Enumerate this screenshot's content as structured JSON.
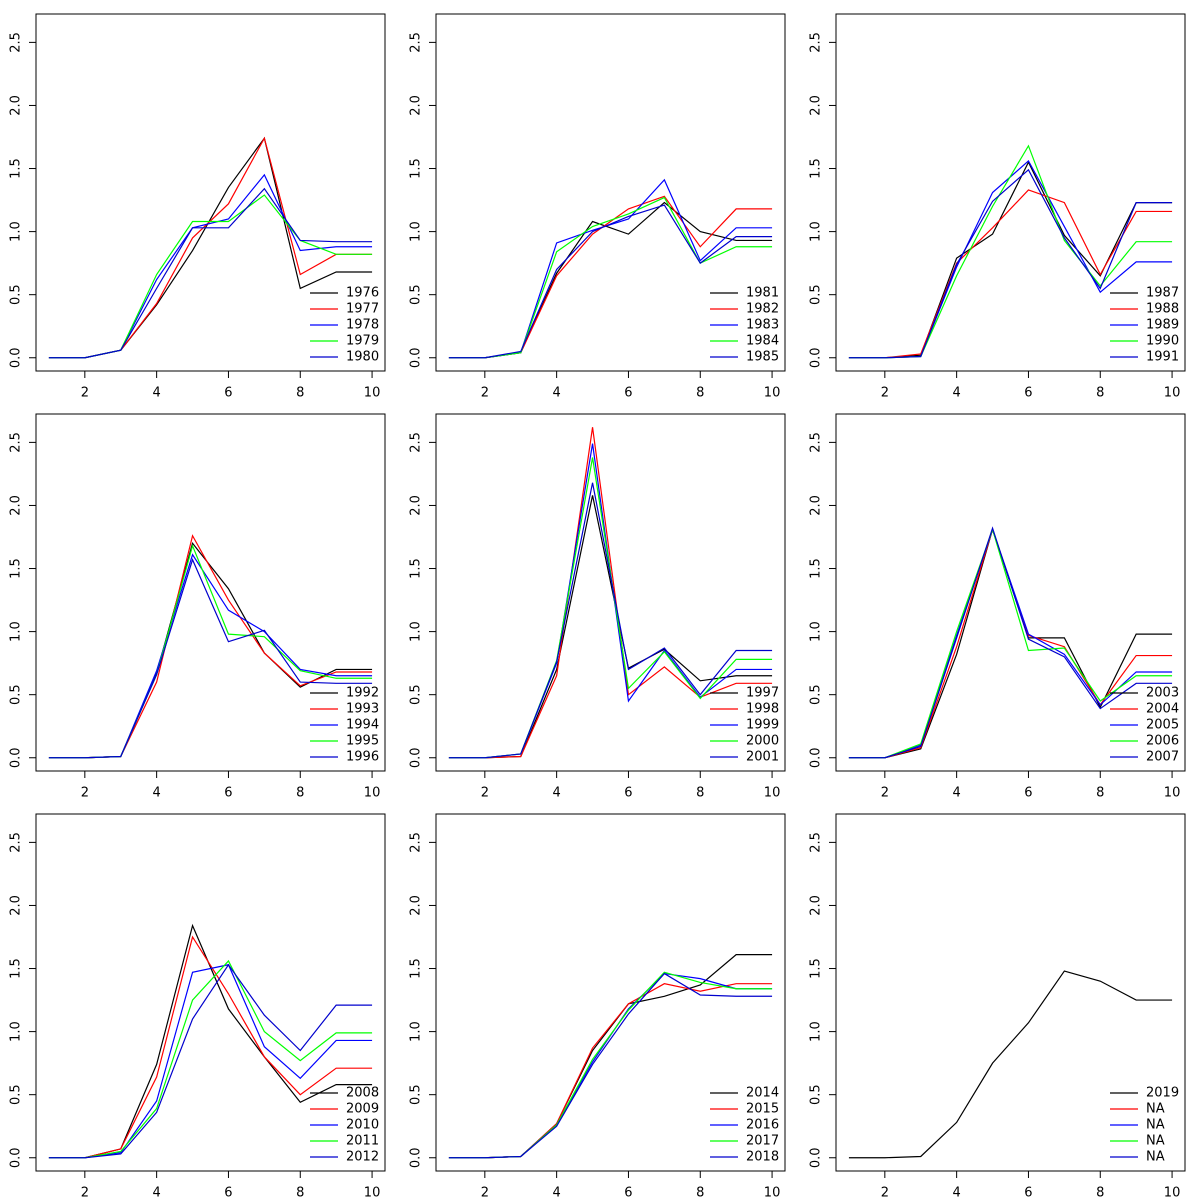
{
  "chart_data": [
    {
      "type": "line",
      "legend": "bottomright",
      "x": [
        1,
        2,
        3,
        4,
        5,
        6,
        7,
        8,
        9,
        10
      ],
      "xlim": [
        0.64,
        10.36
      ],
      "ylim": [
        -0.105,
        2.725
      ],
      "xticks": [
        2,
        4,
        6,
        8,
        10
      ],
      "yticks": [
        {
          "value": 0,
          "label": "0.0"
        },
        0.5,
        {
          "value": 1,
          "label": "1.0"
        },
        1.5,
        {
          "value": 2,
          "label": "2.0"
        },
        2.5
      ],
      "series": [
        {
          "name": "1976",
          "color": "#000000",
          "values": [
            0,
            0,
            0.06,
            0.42,
            0.85,
            1.35,
            1.74,
            0.55,
            0.68,
            0.68
          ]
        },
        {
          "name": "1977",
          "color": "#ff0000",
          "values": [
            0,
            0,
            0.06,
            0.43,
            0.95,
            1.22,
            1.74,
            0.66,
            0.82,
            0.82
          ]
        },
        {
          "name": "1978",
          "color": "#0000ff",
          "values": [
            0,
            0,
            0.06,
            0.62,
            1.03,
            1.1,
            1.45,
            0.85,
            0.88,
            0.88
          ]
        },
        {
          "name": "1979",
          "color": "#00ff00",
          "values": [
            0,
            0,
            0.06,
            0.66,
            1.08,
            1.08,
            1.29,
            0.93,
            0.82,
            0.82
          ]
        },
        {
          "name": "1980",
          "color": "#0000cd",
          "values": [
            0,
            0,
            0.06,
            0.55,
            1.03,
            1.03,
            1.34,
            0.93,
            0.92,
            0.92
          ]
        }
      ]
    },
    {
      "type": "line",
      "legend": "bottomright",
      "x": [
        1,
        2,
        3,
        4,
        5,
        6,
        7,
        8,
        9,
        10
      ],
      "xlim": [
        0.64,
        10.36
      ],
      "ylim": [
        -0.105,
        2.725
      ],
      "xticks": [
        2,
        4,
        6,
        8,
        10
      ],
      "yticks": [
        {
          "value": 0,
          "label": "0.0"
        },
        0.5,
        {
          "value": 1,
          "label": "1.0"
        },
        1.5,
        {
          "value": 2,
          "label": "2.0"
        },
        2.5
      ],
      "series": [
        {
          "name": "1981",
          "color": "#000000",
          "values": [
            0,
            0,
            0.04,
            0.67,
            1.08,
            0.98,
            1.23,
            1.0,
            0.93,
            0.93
          ]
        },
        {
          "name": "1982",
          "color": "#ff0000",
          "values": [
            0,
            0,
            0.04,
            0.65,
            0.98,
            1.18,
            1.28,
            0.88,
            1.18,
            1.18
          ]
        },
        {
          "name": "1983",
          "color": "#0000ff",
          "values": [
            0,
            0,
            0.04,
            0.91,
            1.01,
            1.1,
            1.41,
            0.77,
            1.03,
            1.03
          ]
        },
        {
          "name": "1984",
          "color": "#00ff00",
          "values": [
            0,
            0,
            0.04,
            0.84,
            1.04,
            1.14,
            1.27,
            0.75,
            0.88,
            0.88
          ]
        },
        {
          "name": "1985",
          "color": "#0000cd",
          "values": [
            0,
            0,
            0.05,
            0.7,
            1.0,
            1.12,
            1.21,
            0.75,
            0.96,
            0.96
          ]
        }
      ]
    },
    {
      "type": "line",
      "legend": "bottomright",
      "x": [
        1,
        2,
        3,
        4,
        5,
        6,
        7,
        8,
        9,
        10
      ],
      "xlim": [
        0.64,
        10.36
      ],
      "ylim": [
        -0.105,
        2.725
      ],
      "xticks": [
        2,
        4,
        6,
        8,
        10
      ],
      "yticks": [
        {
          "value": 0,
          "label": "0.0"
        },
        0.5,
        {
          "value": 1,
          "label": "1.0"
        },
        1.5,
        {
          "value": 2,
          "label": "2.0"
        },
        2.5
      ],
      "series": [
        {
          "name": "1987",
          "color": "#000000",
          "values": [
            0,
            0,
            0.02,
            0.79,
            0.98,
            1.55,
            0.97,
            0.65,
            1.23,
            1.23
          ]
        },
        {
          "name": "1988",
          "color": "#ff0000",
          "values": [
            0,
            0,
            0.03,
            0.75,
            1.03,
            1.33,
            1.23,
            0.66,
            1.16,
            1.16
          ]
        },
        {
          "name": "1989",
          "color": "#0000ff",
          "values": [
            0,
            0,
            0.01,
            0.72,
            1.31,
            1.56,
            1.04,
            0.52,
            0.76,
            0.76
          ]
        },
        {
          "name": "1990",
          "color": "#00ff00",
          "values": [
            0,
            0,
            0.01,
            0.65,
            1.2,
            1.68,
            0.93,
            0.57,
            0.92,
            0.92
          ]
        },
        {
          "name": "1991",
          "color": "#0000cd",
          "values": [
            0,
            0,
            0.01,
            0.74,
            1.24,
            1.49,
            0.95,
            0.55,
            1.23,
            1.23
          ]
        }
      ]
    },
    {
      "type": "line",
      "legend": "bottomright",
      "x": [
        1,
        2,
        3,
        4,
        5,
        6,
        7,
        8,
        9,
        10
      ],
      "xlim": [
        0.64,
        10.36
      ],
      "ylim": [
        -0.105,
        2.725
      ],
      "xticks": [
        2,
        4,
        6,
        8,
        10
      ],
      "yticks": [
        {
          "value": 0,
          "label": "0.0"
        },
        0.5,
        {
          "value": 1,
          "label": "1.0"
        },
        1.5,
        {
          "value": 2,
          "label": "2.0"
        },
        2.5
      ],
      "series": [
        {
          "name": "1992",
          "color": "#000000",
          "values": [
            0,
            0,
            0.01,
            0.67,
            1.7,
            1.34,
            0.83,
            0.56,
            0.7,
            0.7
          ]
        },
        {
          "name": "1993",
          "color": "#ff0000",
          "values": [
            0,
            0,
            0.01,
            0.6,
            1.76,
            1.25,
            0.83,
            0.57,
            0.68,
            0.68
          ]
        },
        {
          "name": "1994",
          "color": "#0000ff",
          "values": [
            0,
            0,
            0.01,
            0.69,
            1.61,
            1.17,
            1.0,
            0.7,
            0.65,
            0.65
          ]
        },
        {
          "name": "1995",
          "color": "#00ff00",
          "values": [
            0,
            0,
            0.01,
            0.66,
            1.68,
            0.98,
            0.96,
            0.69,
            0.63,
            0.63
          ]
        },
        {
          "name": "1996",
          "color": "#0000cd",
          "values": [
            0,
            0,
            0.01,
            0.66,
            1.57,
            0.92,
            1.01,
            0.6,
            0.59,
            0.59
          ]
        }
      ]
    },
    {
      "type": "line",
      "legend": "bottomright",
      "x": [
        1,
        2,
        3,
        4,
        5,
        6,
        7,
        8,
        9,
        10
      ],
      "xlim": [
        0.64,
        10.36
      ],
      "ylim": [
        -0.105,
        2.725
      ],
      "xticks": [
        2,
        4,
        6,
        8,
        10
      ],
      "yticks": [
        {
          "value": 0,
          "label": "0.0"
        },
        0.5,
        {
          "value": 1,
          "label": "1.0"
        },
        1.5,
        {
          "value": 2,
          "label": "2.0"
        },
        2.5
      ],
      "series": [
        {
          "name": "1997",
          "color": "#000000",
          "values": [
            0,
            0,
            0.01,
            0.7,
            2.08,
            0.71,
            0.86,
            0.61,
            0.65,
            0.65
          ]
        },
        {
          "name": "1998",
          "color": "#ff0000",
          "values": [
            0,
            0,
            0.01,
            0.65,
            2.62,
            0.5,
            0.72,
            0.48,
            0.59,
            0.59
          ]
        },
        {
          "name": "1999",
          "color": "#0000ff",
          "values": [
            0,
            0,
            0.03,
            0.75,
            2.49,
            0.45,
            0.85,
            0.48,
            0.7,
            0.7
          ]
        },
        {
          "name": "2000",
          "color": "#00ff00",
          "values": [
            0,
            0,
            0.03,
            0.77,
            2.38,
            0.55,
            0.84,
            0.47,
            0.78,
            0.78
          ]
        },
        {
          "name": "2001",
          "color": "#0000cd",
          "values": [
            0,
            0,
            0.03,
            0.76,
            2.18,
            0.7,
            0.87,
            0.5,
            0.85,
            0.85
          ]
        }
      ]
    },
    {
      "type": "line",
      "legend": "bottomright",
      "x": [
        1,
        2,
        3,
        4,
        5,
        6,
        7,
        8,
        9,
        10
      ],
      "xlim": [
        0.64,
        10.36
      ],
      "ylim": [
        -0.105,
        2.725
      ],
      "xticks": [
        2,
        4,
        6,
        8,
        10
      ],
      "yticks": [
        {
          "value": 0,
          "label": "0.0"
        },
        0.5,
        {
          "value": 1,
          "label": "1.0"
        },
        1.5,
        {
          "value": 2,
          "label": "2.0"
        },
        2.5
      ],
      "series": [
        {
          "name": "2003",
          "color": "#000000",
          "values": [
            0,
            0,
            0.07,
            0.82,
            1.81,
            0.95,
            0.95,
            0.4,
            0.98,
            0.98
          ]
        },
        {
          "name": "2004",
          "color": "#ff0000",
          "values": [
            0,
            0,
            0.08,
            0.88,
            1.81,
            0.97,
            0.88,
            0.42,
            0.81,
            0.81
          ]
        },
        {
          "name": "2005",
          "color": "#0000ff",
          "values": [
            0,
            0,
            0.1,
            0.97,
            1.81,
            0.98,
            0.82,
            0.42,
            0.68,
            0.68
          ]
        },
        {
          "name": "2006",
          "color": "#00ff00",
          "values": [
            0,
            0,
            0.11,
            1.0,
            1.81,
            0.85,
            0.87,
            0.45,
            0.65,
            0.65
          ]
        },
        {
          "name": "2007",
          "color": "#0000cd",
          "values": [
            0,
            0,
            0.09,
            0.95,
            1.82,
            0.94,
            0.8,
            0.39,
            0.59,
            0.59
          ]
        }
      ]
    },
    {
      "type": "line",
      "legend": "bottomright",
      "x": [
        1,
        2,
        3,
        4,
        5,
        6,
        7,
        8,
        9,
        10
      ],
      "xlim": [
        0.64,
        10.36
      ],
      "ylim": [
        -0.105,
        2.725
      ],
      "xticks": [
        2,
        4,
        6,
        8,
        10
      ],
      "yticks": [
        {
          "value": 0,
          "label": "0.0"
        },
        0.5,
        {
          "value": 1,
          "label": "1.0"
        },
        1.5,
        {
          "value": 2,
          "label": "2.0"
        },
        2.5
      ],
      "series": [
        {
          "name": "2008",
          "color": "#000000",
          "values": [
            0,
            0,
            0.07,
            0.74,
            1.84,
            1.18,
            0.8,
            0.44,
            0.58,
            0.58
          ]
        },
        {
          "name": "2009",
          "color": "#ff0000",
          "values": [
            0,
            0,
            0.07,
            0.64,
            1.75,
            1.3,
            0.8,
            0.5,
            0.71,
            0.71
          ]
        },
        {
          "name": "2010",
          "color": "#0000ff",
          "values": [
            0,
            0,
            0.04,
            0.45,
            1.47,
            1.53,
            0.88,
            0.63,
            0.93,
            0.93
          ]
        },
        {
          "name": "2011",
          "color": "#00ff00",
          "values": [
            0,
            0,
            0.05,
            0.39,
            1.25,
            1.56,
            1.0,
            0.77,
            0.99,
            0.99
          ]
        },
        {
          "name": "2012",
          "color": "#0000cd",
          "values": [
            0,
            0,
            0.03,
            0.36,
            1.1,
            1.53,
            1.13,
            0.85,
            1.21,
            1.21
          ]
        }
      ]
    },
    {
      "type": "line",
      "legend": "bottomright",
      "x": [
        1,
        2,
        3,
        4,
        5,
        6,
        7,
        8,
        9,
        10
      ],
      "xlim": [
        0.64,
        10.36
      ],
      "ylim": [
        -0.105,
        2.725
      ],
      "xticks": [
        2,
        4,
        6,
        8,
        10
      ],
      "yticks": [
        {
          "value": 0,
          "label": "0.0"
        },
        0.5,
        {
          "value": 1,
          "label": "1.0"
        },
        1.5,
        {
          "value": 2,
          "label": "2.0"
        },
        2.5
      ],
      "series": [
        {
          "name": "2014",
          "color": "#000000",
          "values": [
            0,
            0,
            0.01,
            0.27,
            0.85,
            1.22,
            1.28,
            1.37,
            1.61,
            1.61
          ]
        },
        {
          "name": "2015",
          "color": "#ff0000",
          "values": [
            0,
            0,
            0.01,
            0.27,
            0.87,
            1.22,
            1.38,
            1.32,
            1.38,
            1.38
          ]
        },
        {
          "name": "2016",
          "color": "#0000ff",
          "values": [
            0,
            0,
            0.01,
            0.26,
            0.76,
            1.18,
            1.46,
            1.42,
            1.34,
            1.34
          ]
        },
        {
          "name": "2017",
          "color": "#00ff00",
          "values": [
            0,
            0,
            0.01,
            0.26,
            0.78,
            1.17,
            1.47,
            1.39,
            1.34,
            1.34
          ]
        },
        {
          "name": "2018",
          "color": "#0000cd",
          "values": [
            0,
            0,
            0.01,
            0.25,
            0.74,
            1.14,
            1.46,
            1.29,
            1.28,
            1.28
          ]
        }
      ]
    },
    {
      "type": "line",
      "legend": "bottomright",
      "x": [
        1,
        2,
        3,
        4,
        5,
        6,
        7,
        8,
        9,
        10
      ],
      "xlim": [
        0.64,
        10.36
      ],
      "ylim": [
        -0.105,
        2.725
      ],
      "xticks": [
        2,
        4,
        6,
        8,
        10
      ],
      "yticks": [
        {
          "value": 0,
          "label": "0.0"
        },
        0.5,
        {
          "value": 1,
          "label": "1.0"
        },
        1.5,
        {
          "value": 2,
          "label": "2.0"
        },
        2.5
      ],
      "series": [
        {
          "name": "2019",
          "color": "#000000",
          "values": [
            0,
            0,
            0.01,
            0.28,
            0.75,
            1.07,
            1.48,
            1.4,
            1.25,
            1.25
          ]
        },
        {
          "name": "NA",
          "color": "#ff0000",
          "values": [
            null,
            null,
            null,
            null,
            null,
            null,
            null,
            null,
            null,
            null
          ]
        },
        {
          "name": "NA",
          "color": "#0000ff",
          "values": [
            null,
            null,
            null,
            null,
            null,
            null,
            null,
            null,
            null,
            null
          ]
        },
        {
          "name": "NA",
          "color": "#00ff00",
          "values": [
            null,
            null,
            null,
            null,
            null,
            null,
            null,
            null,
            null,
            null
          ]
        },
        {
          "name": "NA",
          "color": "#0000cd",
          "values": [
            null,
            null,
            null,
            null,
            null,
            null,
            null,
            null,
            null,
            null
          ]
        }
      ]
    }
  ]
}
